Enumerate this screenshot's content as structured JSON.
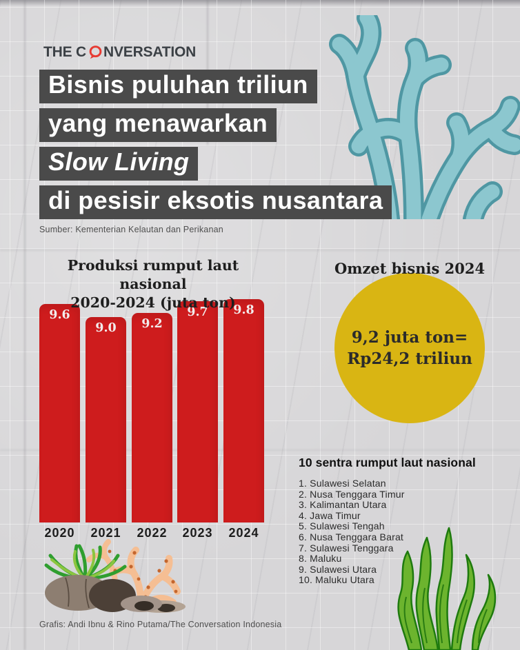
{
  "logo": {
    "text_before_o": "THE C",
    "text_after_o": "NVERSATION",
    "bubble_color": "#e73b33",
    "text_color": "#3c4146"
  },
  "title": {
    "box_color": "#4a4a4a",
    "lines": [
      "Bisnis puluhan triliun",
      "yang menawarkan",
      "Slow Living",
      "di pesisir eksotis nusantara"
    ]
  },
  "source_note": "Sumber: Kementerian Kelautan dan Perikanan",
  "chart_data": {
    "type": "bar",
    "title": "Produksi rumput laut nasional 2020-2024 (juta ton)",
    "title_line1": "Produksi rumput laut nasional",
    "title_line2": "2020-2024 (juta ton)",
    "categories": [
      "2020",
      "2021",
      "2022",
      "2023",
      "2024"
    ],
    "values": [
      9.6,
      9.0,
      9.2,
      9.7,
      9.8
    ],
    "unit": "juta ton",
    "bar_color": "#ce1c1d",
    "value_label_color": "#f2ecec",
    "ylim": [
      0,
      10
    ],
    "grid": false,
    "legend": "none"
  },
  "omzet": {
    "heading": "Omzet bisnis 2024",
    "circle_line1": "9,2 juta ton=",
    "circle_line2": "Rp24,2 triliun",
    "circle_color": "#d9b513",
    "text_color": "#2b2b2b"
  },
  "sentra": {
    "heading": "10 sentra rumput laut nasional",
    "items": [
      "1. Sulawesi Selatan",
      "2. Nusa Tenggara Timur",
      "3. Kalimantan Utara",
      "4. Jawa Timur",
      "5. Sulawesi Tengah",
      "6. Nusa Tenggara Barat",
      "7. Sulawesi Tenggara",
      "8. Maluku",
      "9. Sulawesi Utara",
      "10. Maluku Utara"
    ]
  },
  "credit": "Grafis: Andi Ibnu & Rino Putama/The Conversation Indonesia",
  "decor_colors": {
    "coral_teal_fill": "#8cc7cf",
    "coral_teal_outline": "#4f97a3",
    "kelp_green_fill": "#6cb42e",
    "kelp_green_outline": "#1e7a0e",
    "rock_brown": "#8d7e71",
    "rock_dark": "#4c4037",
    "rock_tan": "#a3948a",
    "coral_orange": "#f5be93",
    "coral_orange_dots": "#c4662e",
    "tuft_green": "#2f9e2f",
    "tuft_light_green": "#8bc53f"
  }
}
